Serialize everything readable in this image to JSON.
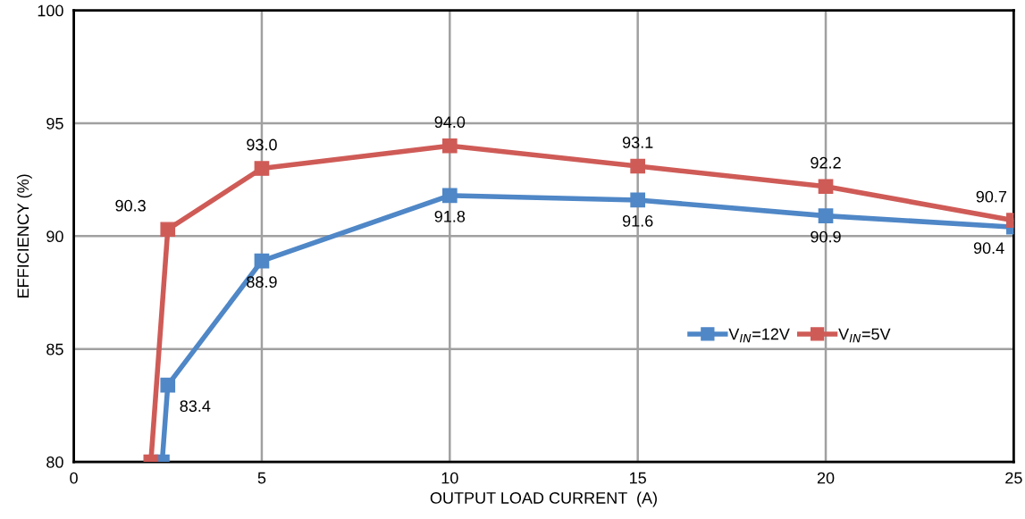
{
  "chart_data": {
    "type": "line",
    "xlabel": "OUTPUT LOAD CURRENT  (A)",
    "ylabel": "EFFICIENCY (%)",
    "xlim": [
      0,
      25
    ],
    "xticks": [
      0,
      5,
      10,
      15,
      20,
      25
    ],
    "ylim": [
      80,
      100
    ],
    "yticks": [
      80,
      85,
      90,
      95,
      100
    ],
    "grid": true,
    "legend": "bottom right",
    "marker": "square",
    "line_style": "solid",
    "series": [
      {
        "name": "V$_{IN}$=12V",
        "color": "#4f87c7",
        "x": [
          2.35,
          2.5,
          5,
          10,
          15,
          20,
          25
        ],
        "values": [
          80,
          83.4,
          88.9,
          91.8,
          91.6,
          90.9,
          90.4
        ],
        "value_labels": [
          null,
          "83.4",
          "88.9",
          "91.8",
          "91.6",
          "90.9",
          "90.4"
        ]
      },
      {
        "name": "V$_{IN}$=5V",
        "color": "#cf5b57",
        "x": [
          2.05,
          2.5,
          5,
          10,
          15,
          20,
          25
        ],
        "values": [
          80,
          90.3,
          93.0,
          94.0,
          93.1,
          92.2,
          90.7
        ],
        "value_labels": [
          null,
          "90.3",
          "93.0",
          "94.0",
          "93.1",
          "92.2",
          "90.7"
        ]
      }
    ]
  }
}
